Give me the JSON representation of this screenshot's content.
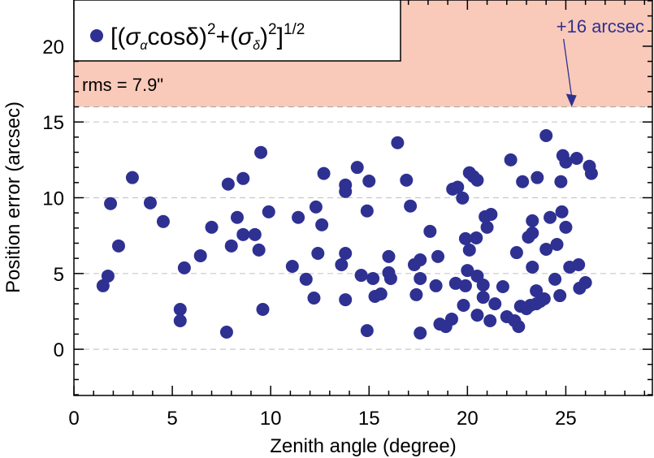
{
  "chart_data": {
    "type": "scatter",
    "title": "",
    "xlabel": "Zenith angle (degree)",
    "ylabel": "Position error (arcsec)",
    "xlim": [
      0,
      29.4
    ],
    "ylim": [
      -3.05,
      23.05
    ],
    "xticks": [
      0,
      5,
      10,
      15,
      20,
      25
    ],
    "yticks": [
      0,
      5,
      10,
      15,
      20
    ],
    "grid_y": [
      0,
      5,
      10,
      15
    ],
    "legend": {
      "label": "[(σ_α cosδ)² + (σ_δ)²]^{1/2}",
      "placement": "top-left"
    },
    "legend_text": {
      "open": "[(",
      "sigma": "σ",
      "sub_a": "α",
      "cos": "cosδ",
      "close1": ")",
      "sup2": "2",
      "plus": "+(",
      "sub_d": "δ",
      "close2": ")",
      "close3": "]",
      "sup_half": "1/2"
    },
    "shaded_region": {
      "from": 16,
      "color": "#f9c9b9"
    },
    "annotations": {
      "rms": "rms = 7.9\"",
      "threshold": "+16 arcsec",
      "threshold_value": 16,
      "arrow_x": 25.3
    },
    "colors": {
      "point": "#2e3192",
      "annotation": "#2e3192",
      "grid": "#c8c8c8"
    },
    "points": [
      [
        1.48,
        4.19
      ],
      [
        1.73,
        4.83
      ],
      [
        1.86,
        9.61
      ],
      [
        2.27,
        6.82
      ],
      [
        2.97,
        11.33
      ],
      [
        3.88,
        9.66
      ],
      [
        4.54,
        8.43
      ],
      [
        5.4,
        2.63
      ],
      [
        5.4,
        1.88
      ],
      [
        5.61,
        5.37
      ],
      [
        6.43,
        6.17
      ],
      [
        7.0,
        8.05
      ],
      [
        7.76,
        1.13
      ],
      [
        7.84,
        10.9
      ],
      [
        8.0,
        6.82
      ],
      [
        8.3,
        8.7
      ],
      [
        8.6,
        11.27
      ],
      [
        8.6,
        7.57
      ],
      [
        9.2,
        7.57
      ],
      [
        9.4,
        6.55
      ],
      [
        9.5,
        12.99
      ],
      [
        9.6,
        2.63
      ],
      [
        9.9,
        9.07
      ],
      [
        11.1,
        5.47
      ],
      [
        11.4,
        8.7
      ],
      [
        11.8,
        4.62
      ],
      [
        12.2,
        3.38
      ],
      [
        12.3,
        9.39
      ],
      [
        12.4,
        6.33
      ],
      [
        12.6,
        8.21
      ],
      [
        12.7,
        11.6
      ],
      [
        13.6,
        5.58
      ],
      [
        13.8,
        10.84
      ],
      [
        13.8,
        10.41
      ],
      [
        13.8,
        6.33
      ],
      [
        13.8,
        3.27
      ],
      [
        14.4,
        12.0
      ],
      [
        14.6,
        4.88
      ],
      [
        14.9,
        1.23
      ],
      [
        14.9,
        9.13
      ],
      [
        15.0,
        11.1
      ],
      [
        15.2,
        4.67
      ],
      [
        15.3,
        3.49
      ],
      [
        15.6,
        3.65
      ],
      [
        16.0,
        5.05
      ],
      [
        16.0,
        6.12
      ],
      [
        16.1,
        4.67
      ],
      [
        16.45,
        13.63
      ],
      [
        16.9,
        11.16
      ],
      [
        17.1,
        9.45
      ],
      [
        17.3,
        5.58
      ],
      [
        17.4,
        3.6
      ],
      [
        17.6,
        4.67
      ],
      [
        17.6,
        5.9
      ],
      [
        17.6,
        1.07
      ],
      [
        18.1,
        7.78
      ],
      [
        18.4,
        4.19
      ],
      [
        18.5,
        6.12
      ],
      [
        18.6,
        1.66
      ],
      [
        18.9,
        1.5
      ],
      [
        19.2,
        1.99
      ],
      [
        19.4,
        4.35
      ],
      [
        19.25,
        10.57
      ],
      [
        19.5,
        10.7
      ],
      [
        19.75,
        9.98
      ],
      [
        19.8,
        2.9
      ],
      [
        19.9,
        7.3
      ],
      [
        19.9,
        4.19
      ],
      [
        20.1,
        11.65
      ],
      [
        20.0,
        5.2
      ],
      [
        20.1,
        6.55
      ],
      [
        20.3,
        11.4
      ],
      [
        20.5,
        11.16
      ],
      [
        20.45,
        7.35
      ],
      [
        20.5,
        4.83
      ],
      [
        20.5,
        2.25
      ],
      [
        20.8,
        4.24
      ],
      [
        20.8,
        3.43
      ],
      [
        20.9,
        8.75
      ],
      [
        21.0,
        8.05
      ],
      [
        21.2,
        8.9
      ],
      [
        21.15,
        1.88
      ],
      [
        21.4,
        3.0
      ],
      [
        21.8,
        4.13
      ],
      [
        22.0,
        2.15
      ],
      [
        22.2,
        12.5
      ],
      [
        22.4,
        1.88
      ],
      [
        22.5,
        6.38
      ],
      [
        22.6,
        1.5
      ],
      [
        22.7,
        2.84
      ],
      [
        22.8,
        11.06
      ],
      [
        23.0,
        2.68
      ],
      [
        23.1,
        7.4
      ],
      [
        23.2,
        2.9
      ],
      [
        23.3,
        7.67
      ],
      [
        23.3,
        5.42
      ],
      [
        23.3,
        8.48
      ],
      [
        23.5,
        3.86
      ],
      [
        23.55,
        11.33
      ],
      [
        23.5,
        3.0
      ],
      [
        23.7,
        3.16
      ],
      [
        23.9,
        3.33
      ],
      [
        24.0,
        14.1
      ],
      [
        24.2,
        8.7
      ],
      [
        24.45,
        4.62
      ],
      [
        24.55,
        6.92
      ],
      [
        24.0,
        6.6
      ],
      [
        24.7,
        3.54
      ],
      [
        24.75,
        11.06
      ],
      [
        24.8,
        9.07
      ],
      [
        24.85,
        12.78
      ],
      [
        25.0,
        12.35
      ],
      [
        25.0,
        8.05
      ],
      [
        25.2,
        5.42
      ],
      [
        25.55,
        12.6
      ],
      [
        25.65,
        5.58
      ],
      [
        25.7,
        4.03
      ],
      [
        26.0,
        4.4
      ],
      [
        26.2,
        12.08
      ],
      [
        26.3,
        11.6
      ]
    ]
  }
}
